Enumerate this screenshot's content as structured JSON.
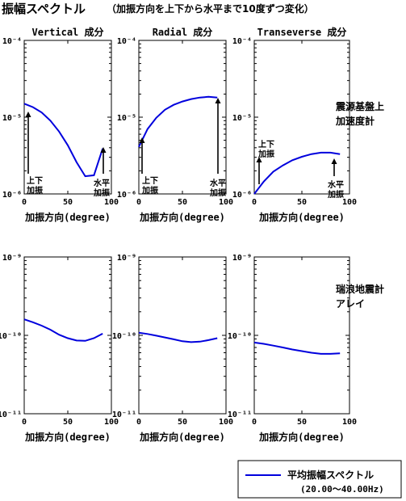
{
  "figure": {
    "title": "振幅スペクトル",
    "subtitle": "（加振方向を上下から水平まで10度ずつ変化）",
    "row_labels": [
      [
        "震源基盤上",
        "加速度計"
      ],
      [
        "瑞浪地震計",
        "アレイ"
      ]
    ],
    "legend": {
      "label_1": "平均振幅スペクトル",
      "label_2": "(20.00〜40.00Hz)",
      "color": "#0000dd"
    },
    "annot": {
      "vertical": [
        "上下",
        "加振"
      ],
      "horizontal": [
        "水平",
        "加振"
      ]
    }
  },
  "chart_data": [
    {
      "type": "line",
      "title": "Vertical 成分",
      "xlabel": "加振方向(degree)",
      "ylabel": "",
      "yscale": "log",
      "xlim": [
        0,
        100
      ],
      "ylim": [
        1e-06,
        0.0001
      ],
      "x": [
        0,
        10,
        20,
        30,
        40,
        50,
        60,
        70,
        80,
        90
      ],
      "y": [
        1.5e-05,
        1.35e-05,
        1.15e-05,
        9e-06,
        6.5e-06,
        4.3e-06,
        2.6e-06,
        1.7e-06,
        1.75e-06,
        3.9e-06
      ]
    },
    {
      "type": "line",
      "title": "Radial 成分",
      "xlabel": "加振方向(degree)",
      "ylabel": "",
      "yscale": "log",
      "xlim": [
        0,
        100
      ],
      "ylim": [
        1e-06,
        0.0001
      ],
      "x": [
        0,
        10,
        20,
        30,
        40,
        50,
        60,
        70,
        80,
        90
      ],
      "y": [
        4.1e-06,
        7e-06,
        9.8e-06,
        1.25e-05,
        1.45e-05,
        1.6e-05,
        1.72e-05,
        1.8e-05,
        1.84e-05,
        1.8e-05
      ]
    },
    {
      "type": "line",
      "title": "Transeverse 成分",
      "xlabel": "加振方向(degree)",
      "ylabel": "",
      "yscale": "log",
      "xlim": [
        0,
        100
      ],
      "ylim": [
        1e-06,
        0.0001
      ],
      "x": [
        0,
        10,
        20,
        30,
        40,
        50,
        60,
        70,
        80,
        90
      ],
      "y": [
        1e-06,
        1.45e-06,
        1.95e-06,
        2.35e-06,
        2.75e-06,
        3.05e-06,
        3.3e-06,
        3.45e-06,
        3.45e-06,
        3.3e-06
      ]
    },
    {
      "type": "line",
      "title": "",
      "xlabel": "加振方向(degree)",
      "ylabel": "",
      "yscale": "log",
      "xlim": [
        0,
        100
      ],
      "ylim": [
        1e-11,
        1e-09
      ],
      "x": [
        0,
        10,
        20,
        30,
        40,
        50,
        60,
        70,
        80,
        90
      ],
      "y": [
        1.6e-10,
        1.47e-10,
        1.33e-10,
        1.18e-10,
        1.02e-10,
        9.2e-11,
        8.6e-11,
        8.5e-11,
        9.2e-11,
        1.05e-10
      ]
    },
    {
      "type": "line",
      "title": "",
      "xlabel": "加振方向(degree)",
      "ylabel": "",
      "yscale": "log",
      "xlim": [
        0,
        100
      ],
      "ylim": [
        1e-11,
        1e-09
      ],
      "x": [
        0,
        10,
        20,
        30,
        40,
        50,
        60,
        70,
        80,
        90
      ],
      "y": [
        1.08e-10,
        1.04e-10,
        9.9e-11,
        9.4e-11,
        8.9e-11,
        8.4e-11,
        8.2e-11,
        8.3e-11,
        8.7e-11,
        9.2e-11
      ]
    },
    {
      "type": "line",
      "title": "",
      "xlabel": "加振方向(degree)",
      "ylabel": "",
      "yscale": "log",
      "xlim": [
        0,
        100
      ],
      "ylim": [
        1e-11,
        1e-09
      ],
      "x": [
        0,
        10,
        20,
        30,
        40,
        50,
        60,
        70,
        80,
        90
      ],
      "y": [
        8.1e-11,
        7.8e-11,
        7.4e-11,
        7e-11,
        6.6e-11,
        6.3e-11,
        6e-11,
        5.8e-11,
        5.8e-11,
        5.9e-11
      ]
    }
  ]
}
